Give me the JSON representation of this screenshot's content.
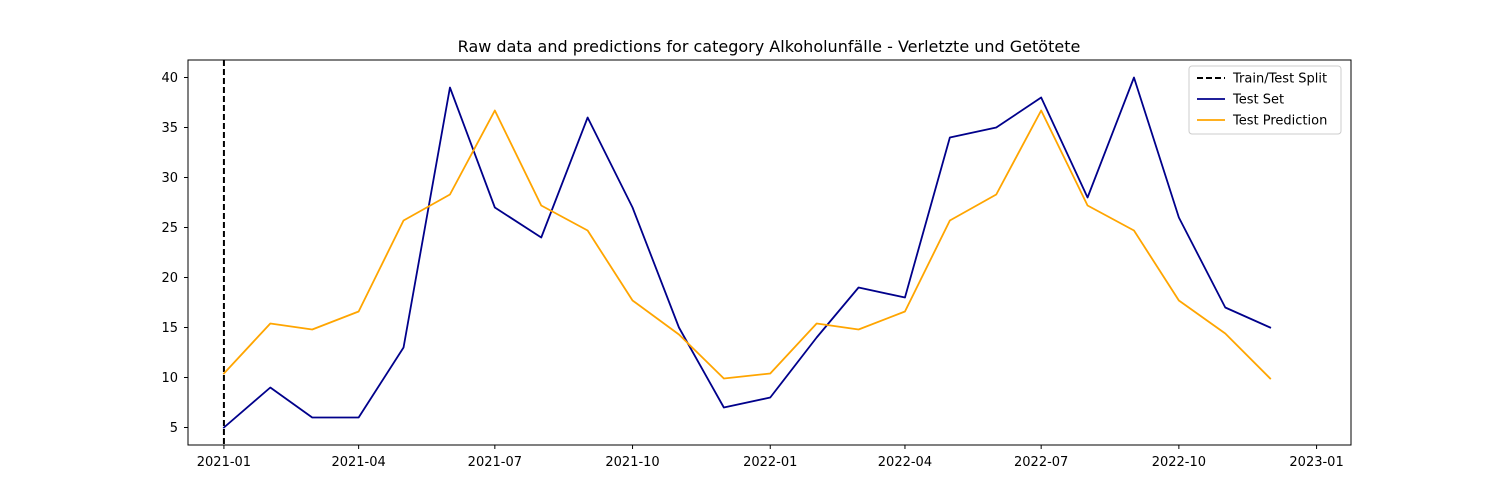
{
  "chart_data": {
    "type": "line",
    "title": "Raw data and predictions for category Alkoholunfälle - Verletzte und Getötete",
    "xlabel": "",
    "ylabel": "",
    "x": [
      "2021-01",
      "2021-02",
      "2021-03",
      "2021-04",
      "2021-05",
      "2021-06",
      "2021-07",
      "2021-08",
      "2021-09",
      "2021-10",
      "2021-11",
      "2021-12",
      "2022-01",
      "2022-02",
      "2022-03",
      "2022-04",
      "2022-05",
      "2022-06",
      "2022-07",
      "2022-08",
      "2022-09",
      "2022-10",
      "2022-11",
      "2022-12"
    ],
    "xticks": [
      "2021-01",
      "2021-04",
      "2021-07",
      "2021-10",
      "2022-01",
      "2022-04",
      "2022-07",
      "2022-10",
      "2023-01"
    ],
    "xlim": [
      "2020-12-08",
      "2023-01-24"
    ],
    "yticks": [
      5,
      10,
      15,
      20,
      25,
      30,
      35,
      40
    ],
    "ylim": [
      3.25,
      41.75
    ],
    "split_date": "2021-01",
    "series": [
      {
        "name": "Test Set",
        "color": "#00008b",
        "style": "solid",
        "values": [
          5,
          9,
          6,
          6,
          13,
          39,
          27,
          24,
          36,
          27,
          15,
          7,
          8,
          14,
          19,
          18,
          34,
          35,
          38,
          28,
          40,
          26,
          17,
          15
        ]
      },
      {
        "name": "Test Prediction",
        "color": "#ffa500",
        "style": "solid",
        "values": [
          10.4,
          15.4,
          14.8,
          16.6,
          25.7,
          28.3,
          36.7,
          27.2,
          24.7,
          17.7,
          14.3,
          9.9,
          10.4,
          15.4,
          14.8,
          16.6,
          25.7,
          28.3,
          36.7,
          27.2,
          24.7,
          17.7,
          14.4,
          9.9
        ]
      }
    ],
    "legend": {
      "placement": "top-right",
      "entries": [
        {
          "label": "Train/Test Split",
          "color": "#000000",
          "style": "dashed"
        },
        {
          "label": "Test Set",
          "color": "#00008b",
          "style": "solid"
        },
        {
          "label": "Test Prediction",
          "color": "#ffa500",
          "style": "solid"
        }
      ]
    },
    "grid": false
  }
}
